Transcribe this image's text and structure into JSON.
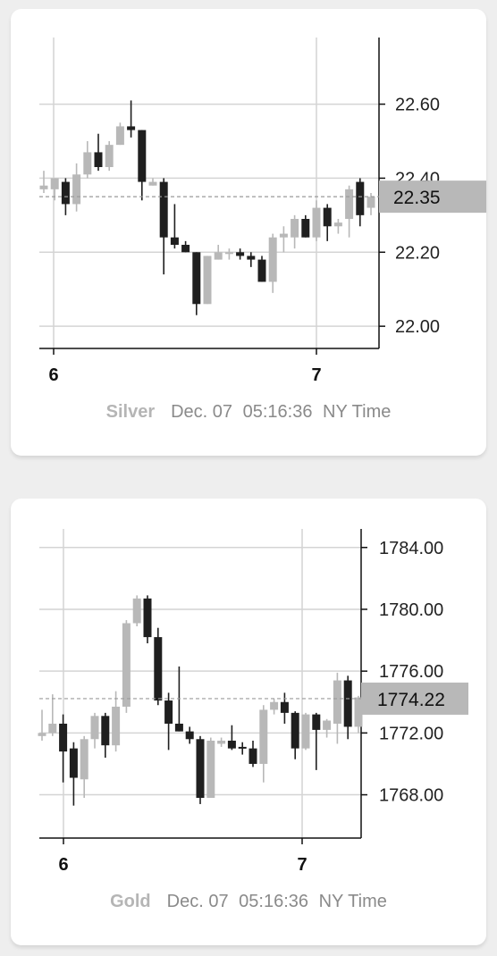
{
  "chart_data": [
    {
      "type": "candlestick",
      "name": "Silver",
      "date": "Dec. 07",
      "time": "05:16:36",
      "timezone": "NY Time",
      "x_ticks": [
        "6",
        "7"
      ],
      "y_ticks": [
        "22.00",
        "22.20",
        "22.40",
        "22.60"
      ],
      "ylim": [
        21.94,
        22.78
      ],
      "current_price": 22.35,
      "current_price_label": "22.35",
      "grid": true,
      "colors": {
        "up": "#b8b8b8",
        "down": "#1f1f1f",
        "price_box": "#b8b8b8"
      },
      "candles": [
        {
          "o": 22.37,
          "h": 22.42,
          "l": 22.36,
          "c": 22.38
        },
        {
          "o": 22.37,
          "h": 22.4,
          "l": 22.34,
          "c": 22.4
        },
        {
          "o": 22.39,
          "h": 22.4,
          "l": 22.3,
          "c": 22.33
        },
        {
          "o": 22.33,
          "h": 22.44,
          "l": 22.31,
          "c": 22.41
        },
        {
          "o": 22.41,
          "h": 22.5,
          "l": 22.4,
          "c": 22.47
        },
        {
          "o": 22.47,
          "h": 22.52,
          "l": 22.42,
          "c": 22.43
        },
        {
          "o": 22.43,
          "h": 22.5,
          "l": 22.42,
          "c": 22.49
        },
        {
          "o": 22.49,
          "h": 22.55,
          "l": 22.49,
          "c": 22.54
        },
        {
          "o": 22.54,
          "h": 22.61,
          "l": 22.51,
          "c": 22.53
        },
        {
          "o": 22.53,
          "h": 22.53,
          "l": 22.34,
          "c": 22.39
        },
        {
          "o": 22.38,
          "h": 22.4,
          "l": 22.38,
          "c": 22.39
        },
        {
          "o": 22.39,
          "h": 22.4,
          "l": 22.14,
          "c": 22.24
        },
        {
          "o": 22.24,
          "h": 22.33,
          "l": 22.21,
          "c": 22.22
        },
        {
          "o": 22.22,
          "h": 22.23,
          "l": 22.2,
          "c": 22.2
        },
        {
          "o": 22.2,
          "h": 22.2,
          "l": 22.03,
          "c": 22.06
        },
        {
          "o": 22.06,
          "h": 22.19,
          "l": 22.06,
          "c": 22.19
        },
        {
          "o": 22.18,
          "h": 22.22,
          "l": 22.18,
          "c": 22.2
        },
        {
          "o": 22.2,
          "h": 22.21,
          "l": 22.18,
          "c": 22.2
        },
        {
          "o": 22.2,
          "h": 22.21,
          "l": 22.18,
          "c": 22.19
        },
        {
          "o": 22.19,
          "h": 22.2,
          "l": 22.16,
          "c": 22.18
        },
        {
          "o": 22.18,
          "h": 22.19,
          "l": 22.12,
          "c": 22.12
        },
        {
          "o": 22.12,
          "h": 22.25,
          "l": 22.09,
          "c": 22.24
        },
        {
          "o": 22.24,
          "h": 22.27,
          "l": 22.2,
          "c": 22.25
        },
        {
          "o": 22.24,
          "h": 22.3,
          "l": 22.21,
          "c": 22.29
        },
        {
          "o": 22.29,
          "h": 22.3,
          "l": 22.24,
          "c": 22.24
        },
        {
          "o": 22.24,
          "h": 22.34,
          "l": 22.23,
          "c": 22.32
        },
        {
          "o": 22.32,
          "h": 22.33,
          "l": 22.23,
          "c": 22.27
        },
        {
          "o": 22.27,
          "h": 22.29,
          "l": 22.25,
          "c": 22.28
        },
        {
          "o": 22.29,
          "h": 22.38,
          "l": 22.24,
          "c": 22.37
        },
        {
          "o": 22.39,
          "h": 22.4,
          "l": 22.27,
          "c": 22.3
        },
        {
          "o": 22.32,
          "h": 22.36,
          "l": 22.3,
          "c": 22.35
        }
      ]
    },
    {
      "type": "candlestick",
      "name": "Gold",
      "date": "Dec. 07",
      "time": "05:16:36",
      "timezone": "NY Time",
      "x_ticks": [
        "6",
        "7"
      ],
      "y_ticks": [
        "1768.00",
        "1772.00",
        "1776.00",
        "1780.00",
        "1784.00"
      ],
      "ylim": [
        1765.2,
        1785.2
      ],
      "current_price": 1774.22,
      "current_price_label": "1774.22",
      "grid": true,
      "colors": {
        "up": "#b8b8b8",
        "down": "#1f1f1f",
        "price_box": "#b8b8b8"
      },
      "candles": [
        {
          "o": 1771.8,
          "h": 1773.5,
          "l": 1771.5,
          "c": 1772.0
        },
        {
          "o": 1772.0,
          "h": 1774.5,
          "l": 1771.8,
          "c": 1772.6
        },
        {
          "o": 1772.6,
          "h": 1773.2,
          "l": 1768.8,
          "c": 1770.8
        },
        {
          "o": 1771.0,
          "h": 1771.4,
          "l": 1767.3,
          "c": 1769.1
        },
        {
          "o": 1769.0,
          "h": 1771.8,
          "l": 1767.8,
          "c": 1771.6
        },
        {
          "o": 1771.6,
          "h": 1773.3,
          "l": 1771.0,
          "c": 1773.1
        },
        {
          "o": 1773.1,
          "h": 1773.3,
          "l": 1770.4,
          "c": 1771.2
        },
        {
          "o": 1771.2,
          "h": 1774.7,
          "l": 1770.8,
          "c": 1773.7
        },
        {
          "o": 1773.7,
          "h": 1779.3,
          "l": 1773.3,
          "c": 1779.1
        },
        {
          "o": 1779.1,
          "h": 1780.9,
          "l": 1778.9,
          "c": 1780.7
        },
        {
          "o": 1780.7,
          "h": 1780.9,
          "l": 1777.8,
          "c": 1778.2
        },
        {
          "o": 1778.2,
          "h": 1778.8,
          "l": 1773.8,
          "c": 1774.1
        },
        {
          "o": 1774.1,
          "h": 1774.6,
          "l": 1770.9,
          "c": 1772.6
        },
        {
          "o": 1772.6,
          "h": 1776.3,
          "l": 1772.1,
          "c": 1772.1
        },
        {
          "o": 1772.1,
          "h": 1772.4,
          "l": 1771.3,
          "c": 1771.6
        },
        {
          "o": 1771.6,
          "h": 1771.8,
          "l": 1767.4,
          "c": 1767.8
        },
        {
          "o": 1767.8,
          "h": 1771.7,
          "l": 1767.8,
          "c": 1771.5
        },
        {
          "o": 1771.3,
          "h": 1771.7,
          "l": 1771.1,
          "c": 1771.5
        },
        {
          "o": 1771.5,
          "h": 1772.5,
          "l": 1770.9,
          "c": 1771.0
        },
        {
          "o": 1771.1,
          "h": 1771.4,
          "l": 1770.6,
          "c": 1771.0
        },
        {
          "o": 1771.0,
          "h": 1771.5,
          "l": 1769.8,
          "c": 1770.0
        },
        {
          "o": 1770.0,
          "h": 1773.8,
          "l": 1768.8,
          "c": 1773.5
        },
        {
          "o": 1773.5,
          "h": 1774.2,
          "l": 1773.2,
          "c": 1774.0
        },
        {
          "o": 1774.0,
          "h": 1774.6,
          "l": 1772.6,
          "c": 1773.3
        },
        {
          "o": 1773.3,
          "h": 1773.4,
          "l": 1770.3,
          "c": 1771.0
        },
        {
          "o": 1771.0,
          "h": 1773.3,
          "l": 1770.9,
          "c": 1773.2
        },
        {
          "o": 1773.2,
          "h": 1773.3,
          "l": 1769.6,
          "c": 1772.2
        },
        {
          "o": 1772.2,
          "h": 1772.9,
          "l": 1771.7,
          "c": 1772.8
        },
        {
          "o": 1772.6,
          "h": 1775.9,
          "l": 1771.3,
          "c": 1775.4
        },
        {
          "o": 1775.4,
          "h": 1775.7,
          "l": 1771.6,
          "c": 1772.4
        },
        {
          "o": 1772.4,
          "h": 1774.4,
          "l": 1772.0,
          "c": 1774.3
        }
      ]
    }
  ]
}
